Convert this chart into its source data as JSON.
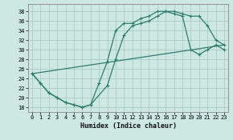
{
  "xlabel": "Humidex (Indice chaleur)",
  "bg_color": "#cce8e0",
  "grid_color": "#aaccC4",
  "line_color": "#2e7d6e",
  "xlim": [
    -0.5,
    23.5
  ],
  "ylim": [
    17,
    39.5
  ],
  "yticks": [
    18,
    20,
    22,
    24,
    26,
    28,
    30,
    32,
    34,
    36,
    38
  ],
  "xticks": [
    0,
    1,
    2,
    3,
    4,
    5,
    6,
    7,
    8,
    9,
    10,
    11,
    12,
    13,
    14,
    15,
    16,
    17,
    18,
    19,
    20,
    21,
    22,
    23
  ],
  "line1_x": [
    0,
    1,
    2,
    3,
    4,
    5,
    6,
    7,
    8,
    9,
    10,
    11,
    12,
    13,
    14,
    15,
    16,
    17,
    18,
    19,
    20,
    21,
    22,
    23
  ],
  "line1_y": [
    25,
    23,
    21,
    20,
    19,
    18.5,
    18,
    18.5,
    23,
    27.5,
    34,
    35.5,
    35.5,
    36.5,
    37,
    38,
    38,
    38,
    37.5,
    37,
    37,
    35,
    32,
    31
  ],
  "line2_x": [
    0,
    1,
    2,
    3,
    4,
    5,
    6,
    7,
    9,
    10,
    11,
    12,
    13,
    14,
    15,
    16,
    17,
    18,
    19,
    20,
    21,
    22,
    23
  ],
  "line2_y": [
    25,
    23,
    21,
    20,
    19,
    18.5,
    18,
    18.5,
    22.5,
    28,
    33,
    35,
    35.5,
    36,
    37,
    38,
    37.5,
    37,
    30,
    29,
    30,
    31,
    30
  ],
  "line3_x": [
    0,
    23
  ],
  "line3_y": [
    25,
    31
  ]
}
